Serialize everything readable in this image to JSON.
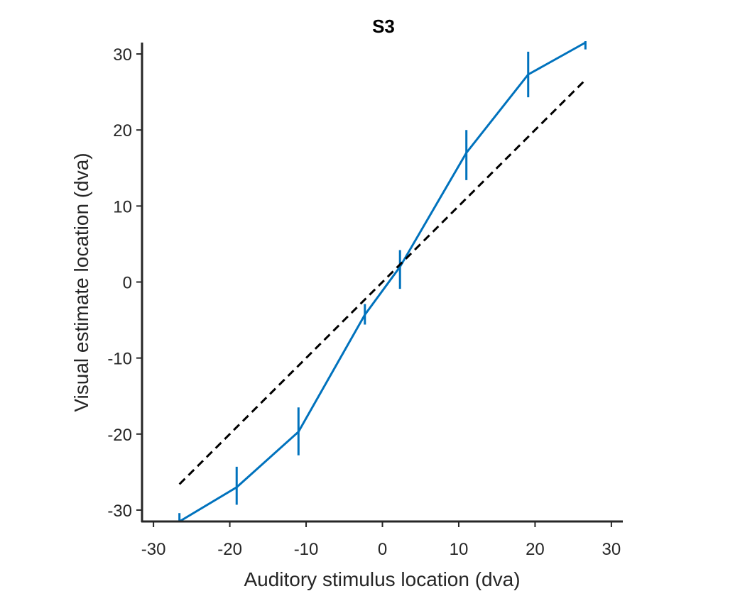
{
  "chart_data": {
    "type": "line",
    "title": "S3",
    "xlabel": "Auditory stimulus location (dva)",
    "ylabel": "Visual estimate location (dva)",
    "xlim": [
      -31.5,
      31.5
    ],
    "ylim": [
      -31.5,
      31.5
    ],
    "xticks": [
      -30,
      -20,
      -10,
      0,
      10,
      20,
      30
    ],
    "yticks": [
      -30,
      -20,
      -10,
      0,
      10,
      20,
      30
    ],
    "xtick_labels": [
      "-30",
      "-20",
      "-10",
      "0",
      "10",
      "20",
      "30"
    ],
    "ytick_labels": [
      "-30",
      "-20",
      "-10",
      "0",
      "10",
      "20",
      "30"
    ],
    "grid": false,
    "series": [
      {
        "x": [
          -26.6,
          -19.1,
          -11.0,
          -2.3,
          2.3,
          11.0,
          19.1,
          26.6
        ],
        "y": [
          -31.5,
          -27.0,
          -19.7,
          -4.3,
          2.0,
          17.0,
          27.3,
          31.5
        ],
        "err_low": [
          -32.3,
          -29.3,
          -22.8,
          -5.6,
          -0.9,
          13.4,
          24.3,
          30.6
        ],
        "err_high": [
          -30.4,
          -24.3,
          -16.5,
          -2.9,
          4.2,
          20.0,
          30.3,
          32.3
        ],
        "color": "#0072BD",
        "style": "solid"
      },
      {
        "x": [
          -26.6,
          26.6
        ],
        "y": [
          -26.6,
          26.6
        ],
        "color": "#000000",
        "style": "dashed"
      }
    ]
  }
}
